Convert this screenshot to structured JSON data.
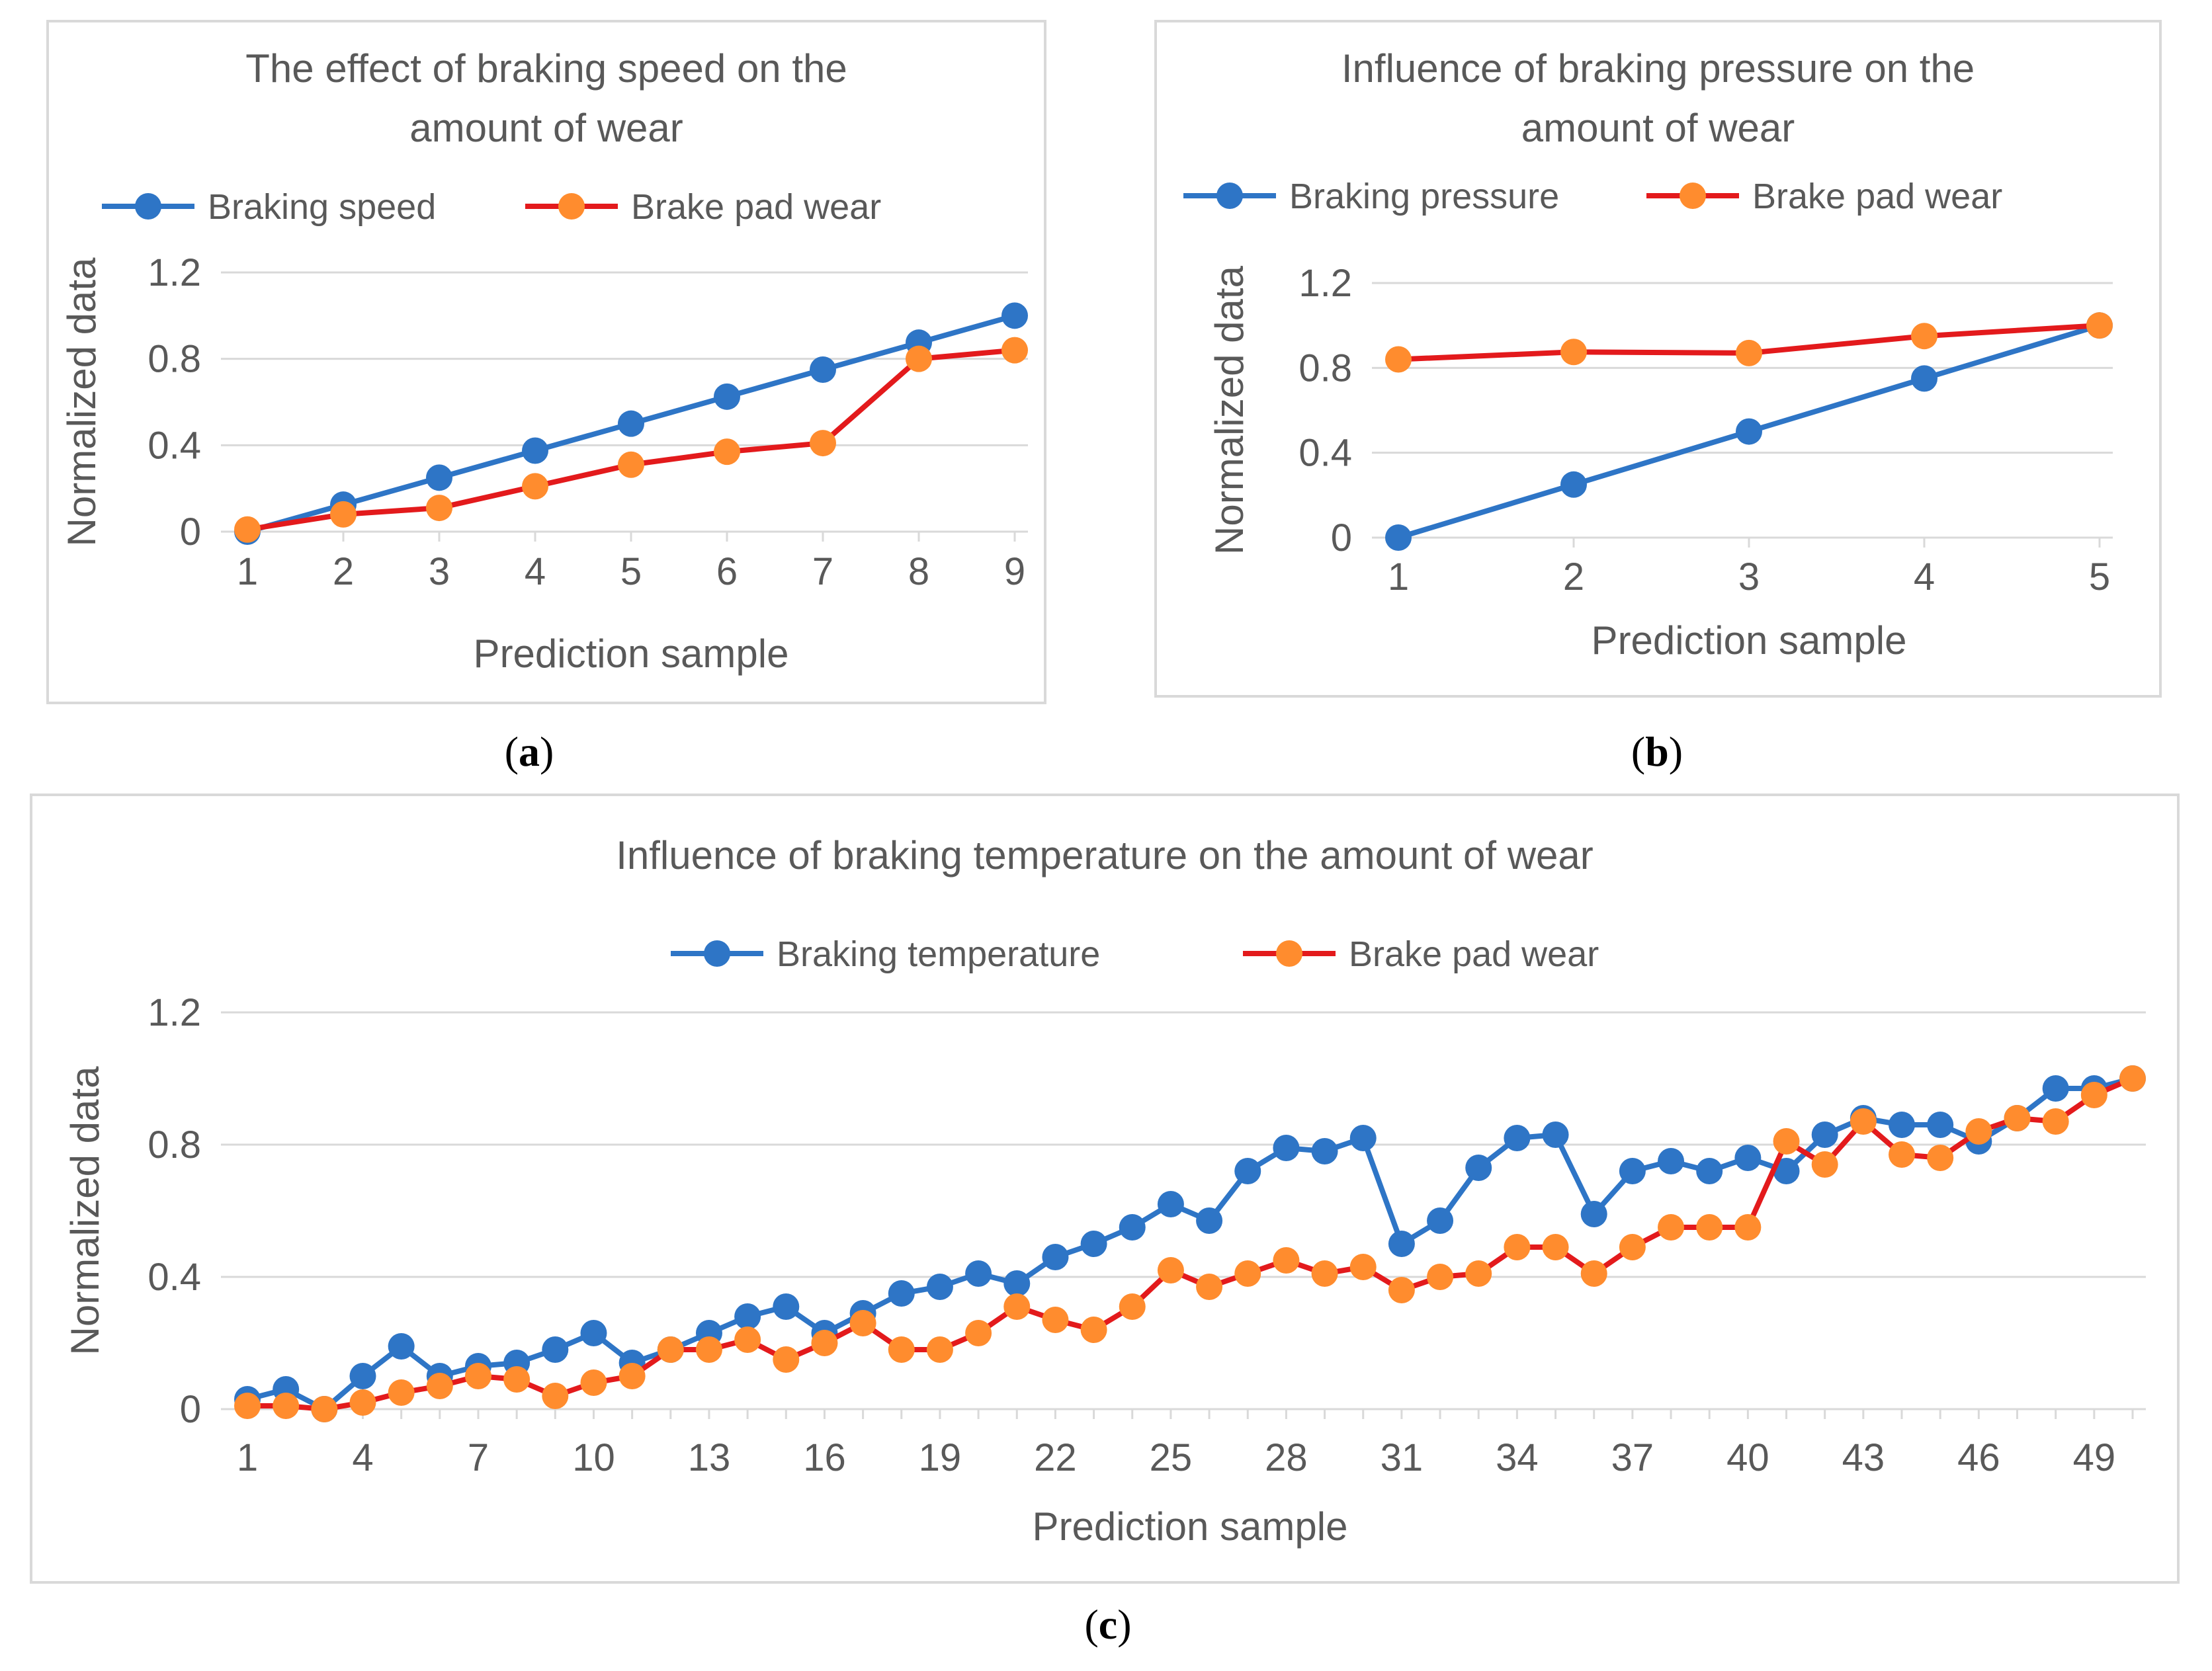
{
  "chart_data": [
    {
      "id": "a",
      "caption_letter": "a",
      "type": "line",
      "title": "The effect of braking speed on the amount of wear",
      "title_lines": [
        "The effect of braking speed on the",
        "amount of wear"
      ],
      "xlabel": "Prediction sample",
      "ylabel": "Normalized data",
      "yticks": [
        "0",
        "0.4",
        "0.8",
        "1.2"
      ],
      "ylim": [
        0,
        1.2
      ],
      "x": [
        1,
        2,
        3,
        4,
        5,
        6,
        7,
        8,
        9
      ],
      "xtick_labels": [
        "1",
        "2",
        "3",
        "4",
        "5",
        "6",
        "7",
        "8",
        "9"
      ],
      "series": [
        {
          "name": "Braking speed",
          "color": "#2e75c6",
          "values": [
            0,
            0.125,
            0.25,
            0.375,
            0.5,
            0.625,
            0.75,
            0.875,
            1.0
          ]
        },
        {
          "name": "Brake pad wear",
          "color": "#e31a1c",
          "marker_color": "#ff8c2e",
          "values": [
            0.01,
            0.08,
            0.11,
            0.21,
            0.31,
            0.37,
            0.41,
            0.8,
            0.84
          ]
        }
      ]
    },
    {
      "id": "b",
      "caption_letter": "b",
      "type": "line",
      "title": "Influence of braking pressure on the amount of wear",
      "title_lines": [
        "Influence of braking pressure on the",
        "amount of wear"
      ],
      "xlabel": "Prediction sample",
      "ylabel": "Normalized data",
      "yticks": [
        "0",
        "0.4",
        "0.8",
        "1.2"
      ],
      "ylim": [
        0,
        1.2
      ],
      "x": [
        1,
        2,
        3,
        4,
        5
      ],
      "xtick_labels": [
        "1",
        "2",
        "3",
        "4",
        "5"
      ],
      "series": [
        {
          "name": "Braking pressure",
          "color": "#2e75c6",
          "values": [
            0,
            0.25,
            0.5,
            0.75,
            1.0
          ]
        },
        {
          "name": "Brake pad wear",
          "color": "#e31a1c",
          "marker_color": "#ff8c2e",
          "values": [
            0.84,
            0.875,
            0.87,
            0.95,
            1.0
          ]
        }
      ]
    },
    {
      "id": "c",
      "caption_letter": "c",
      "type": "line",
      "title": "Influence of braking temperature on the amount of wear",
      "title_lines": [
        "Influence of braking temperature on the amount of wear"
      ],
      "xlabel": "Prediction sample",
      "ylabel": "Normalized data",
      "yticks": [
        "0",
        "0.4",
        "0.8",
        "1.2"
      ],
      "ylim": [
        0,
        1.2
      ],
      "x": [
        1,
        2,
        3,
        4,
        5,
        6,
        7,
        8,
        9,
        10,
        11,
        12,
        13,
        14,
        15,
        16,
        17,
        18,
        19,
        20,
        21,
        22,
        23,
        24,
        25,
        26,
        27,
        28,
        29,
        30,
        31,
        32,
        33,
        34,
        35,
        36,
        37,
        38,
        39,
        40,
        41,
        42,
        43,
        44,
        45,
        46,
        47,
        48,
        49,
        50
      ],
      "xtick_labels": [
        "1",
        "4",
        "7",
        "10",
        "13",
        "16",
        "19",
        "22",
        "25",
        "28",
        "31",
        "34",
        "37",
        "40",
        "43",
        "46",
        "49"
      ],
      "series": [
        {
          "name": "Braking temperature",
          "color": "#2e75c6",
          "values": [
            0.03,
            0.06,
            0.0,
            0.1,
            0.19,
            0.1,
            0.13,
            0.14,
            0.18,
            0.23,
            0.14,
            0.18,
            0.23,
            0.28,
            0.31,
            0.23,
            0.29,
            0.35,
            0.37,
            0.41,
            0.38,
            0.46,
            0.5,
            0.55,
            0.62,
            0.57,
            0.72,
            0.79,
            0.78,
            0.82,
            0.5,
            0.57,
            0.73,
            0.82,
            0.83,
            0.59,
            0.72,
            0.75,
            0.72,
            0.76,
            0.72,
            0.83,
            0.88,
            0.86,
            0.86,
            0.81,
            0.88,
            0.97,
            0.97,
            1.0
          ]
        },
        {
          "name": "Brake pad wear",
          "color": "#e31a1c",
          "marker_color": "#ff8c2e",
          "values": [
            0.01,
            0.01,
            0.0,
            0.02,
            0.05,
            0.07,
            0.1,
            0.09,
            0.04,
            0.08,
            0.1,
            0.18,
            0.18,
            0.21,
            0.15,
            0.2,
            0.26,
            0.18,
            0.18,
            0.23,
            0.31,
            0.27,
            0.24,
            0.31,
            0.42,
            0.37,
            0.41,
            0.45,
            0.41,
            0.43,
            0.36,
            0.4,
            0.41,
            0.49,
            0.49,
            0.41,
            0.49,
            0.55,
            0.55,
            0.55,
            0.81,
            0.74,
            0.87,
            0.77,
            0.76,
            0.84,
            0.88,
            0.87,
            0.95,
            1.0
          ]
        }
      ]
    }
  ]
}
